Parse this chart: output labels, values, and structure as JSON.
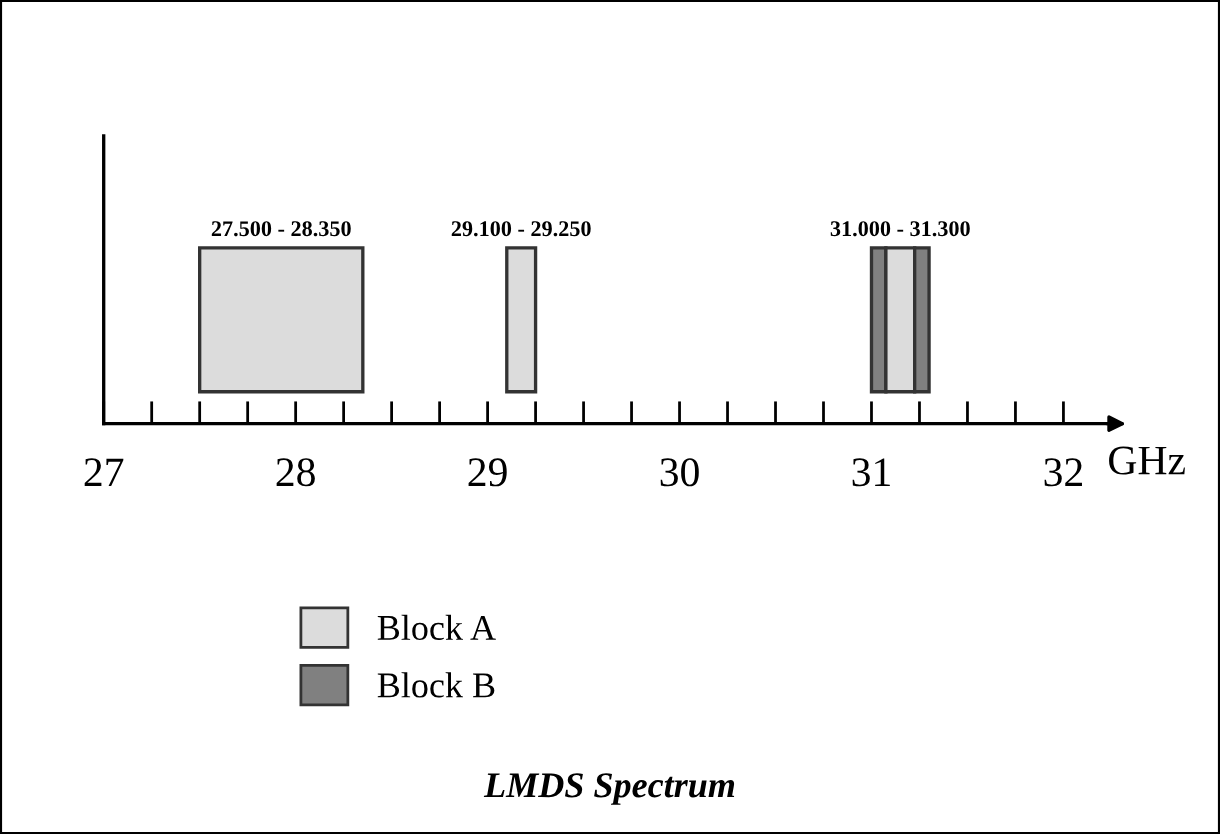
{
  "chart_data": {
    "type": "bar",
    "orientation": "horizontal",
    "title": "LMDS Spectrum",
    "xlabel": "GHz",
    "categories": [
      null
    ],
    "series": [
      {
        "name": "Block A",
        "color": "#dcdcdc",
        "values": [
          0.85
        ],
        "base": [
          27.5
        ]
      },
      {
        "color": "#dcdcdc",
        "values": [
          0.15
        ],
        "base": [
          29.1
        ]
      },
      {
        "name": "Block B",
        "color": "#808080",
        "values": [
          0.075
        ],
        "base": [
          31.0
        ]
      },
      {
        "color": "#dcdcdc",
        "values": [
          0.15
        ],
        "base": [
          31.075
        ]
      },
      {
        "color": "#808080",
        "values": [
          0.075
        ],
        "base": [
          31.225
        ]
      }
    ],
    "xlim": [
      27,
      32.25
    ],
    "xticks": [
      27,
      {
        "value": 27.25,
        "label": null
      },
      {
        "value": 27.5,
        "label": null
      },
      {
        "value": 27.75,
        "label": null
      },
      28,
      {
        "value": 28.25,
        "label": null
      },
      {
        "value": 28.5,
        "label": null
      },
      {
        "value": 28.75,
        "label": null
      },
      29,
      {
        "value": 29.25,
        "label": null
      },
      {
        "value": 29.5,
        "label": null
      },
      {
        "value": 29.75,
        "label": null
      },
      30,
      {
        "value": 30.25,
        "label": null
      },
      {
        "value": 30.5,
        "label": null
      },
      {
        "value": 30.75,
        "label": null
      },
      31,
      {
        "value": 31.25,
        "label": null
      },
      {
        "value": 31.5,
        "label": null
      },
      {
        "value": 31.75,
        "label": null
      },
      32
    ],
    "annotations": [
      "27.500 - 28.350",
      "29.100 - 29.250",
      "31.000 - 31.300"
    ],
    "legend": "bottom left",
    "grid": false
  }
}
